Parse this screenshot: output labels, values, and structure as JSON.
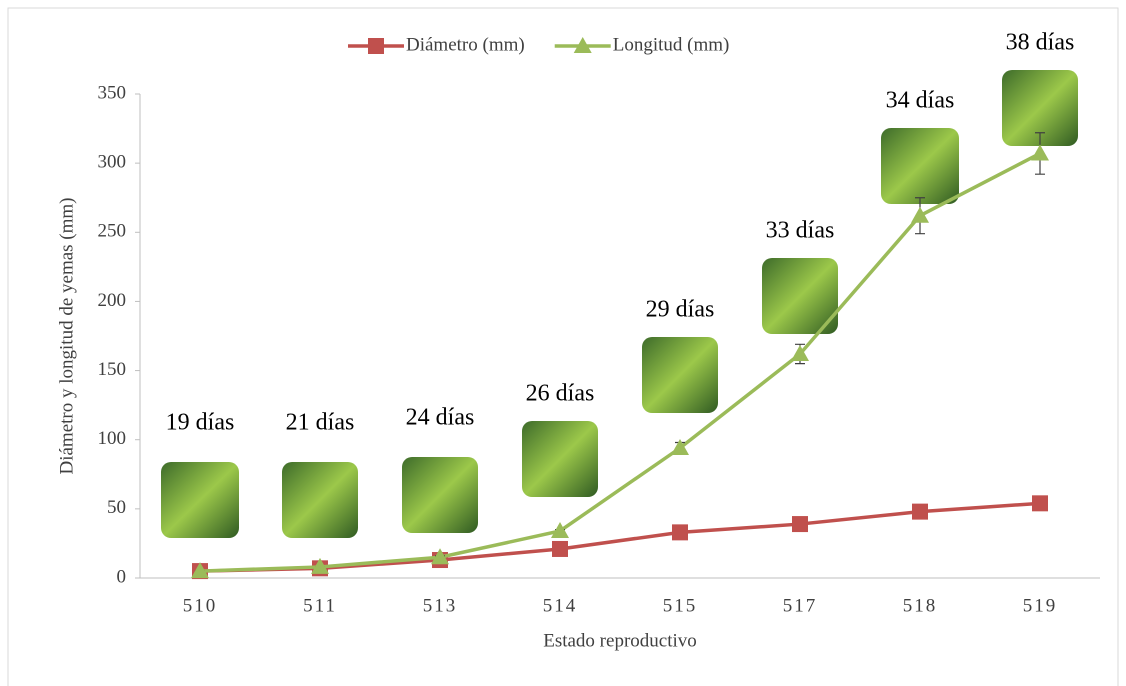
{
  "chart_data": {
    "type": "line",
    "x_label": "Estado reproductivo",
    "y_label": "Diámetro y longitud de yemas (mm)",
    "categories": [
      "510",
      "511",
      "513",
      "514",
      "515",
      "517",
      "518",
      "519"
    ],
    "series": [
      {
        "name": "Diámetro (mm)",
        "color": "#c0504d",
        "marker": "square",
        "values": [
          5,
          7,
          13,
          21,
          33,
          39,
          48,
          54
        ]
      },
      {
        "name": "Longitud (mm)",
        "color": "#9bbb59",
        "marker": "triangle",
        "values": [
          5,
          8,
          15,
          34,
          94,
          162,
          262,
          307
        ],
        "errors": [
          0,
          0,
          1,
          1,
          4,
          7,
          13,
          15
        ]
      }
    ],
    "annotations": [
      "19 días",
      "21 días",
      "24 días",
      "26 días",
      "29 días",
      "33 días",
      "34 días",
      "38 días"
    ],
    "ylim": [
      0,
      350
    ],
    "yticks": [
      0,
      50,
      100,
      150,
      200,
      250,
      300,
      350
    ],
    "legend": "top"
  }
}
